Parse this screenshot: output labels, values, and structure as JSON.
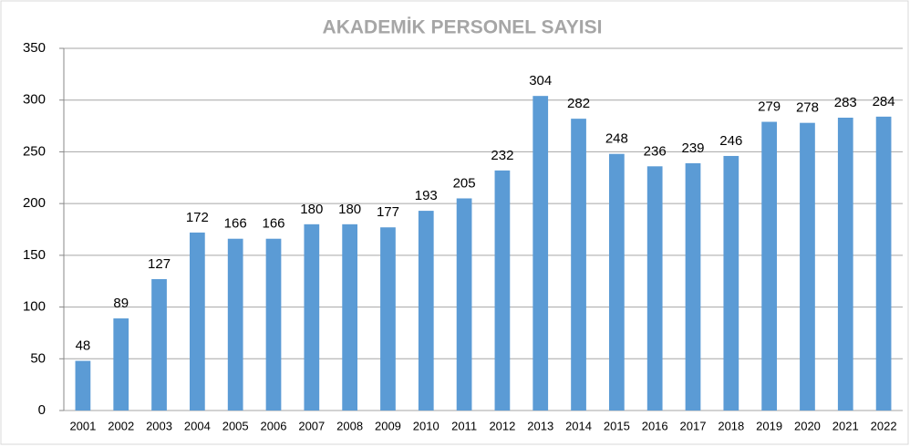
{
  "chart_data": {
    "type": "bar",
    "title": "AKADEMİK PERSONEL SAYISI",
    "categories": [
      "2001",
      "2002",
      "2003",
      "2004",
      "2005",
      "2006",
      "2007",
      "2008",
      "2009",
      "2010",
      "2011",
      "2012",
      "2013",
      "2014",
      "2015",
      "2016",
      "2017",
      "2018",
      "2019",
      "2020",
      "2021",
      "2022"
    ],
    "values": [
      48,
      89,
      127,
      172,
      166,
      166,
      180,
      180,
      177,
      193,
      205,
      232,
      304,
      282,
      248,
      236,
      239,
      246,
      279,
      278,
      283,
      284
    ],
    "color": "#5b9bd5",
    "ylim": [
      0,
      350
    ],
    "yticks": [
      0,
      50,
      100,
      150,
      200,
      250,
      300,
      350
    ],
    "grid": true
  }
}
